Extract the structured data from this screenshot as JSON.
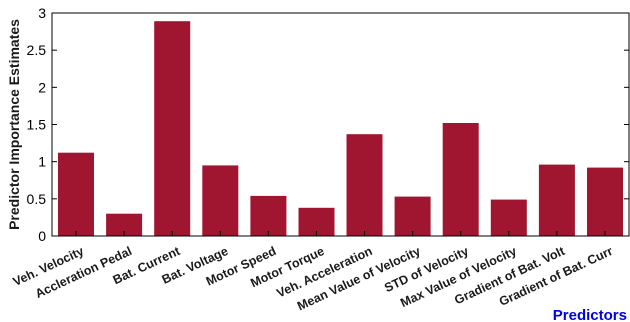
{
  "chart_data": {
    "type": "bar",
    "title": "",
    "xlabel": "Predictors",
    "ylabel": "Predictor Importance Estimates",
    "ylim": [
      0,
      3
    ],
    "yticks": [
      "0",
      "0.5",
      "1",
      "1.5",
      "2",
      "2.5",
      "3"
    ],
    "grid": false,
    "categories": [
      "Veh. Velocity",
      "Accleration Pedal",
      "Bat. Current",
      "Bat. Voltage",
      "Motor Speed",
      "Motor Torque",
      "Veh. Acceleration",
      "Mean Value of Velocity",
      "STD of Velocity",
      "Max Value of Velocity",
      "Gradient of Bat. Volt",
      "Gradient of Bat. Curr"
    ],
    "values": [
      1.12,
      0.3,
      2.89,
      0.95,
      0.54,
      0.38,
      1.37,
      0.53,
      1.52,
      0.49,
      0.96,
      0.92
    ],
    "bar_color": "#a01530",
    "xlabel_color": "#0000e6"
  }
}
